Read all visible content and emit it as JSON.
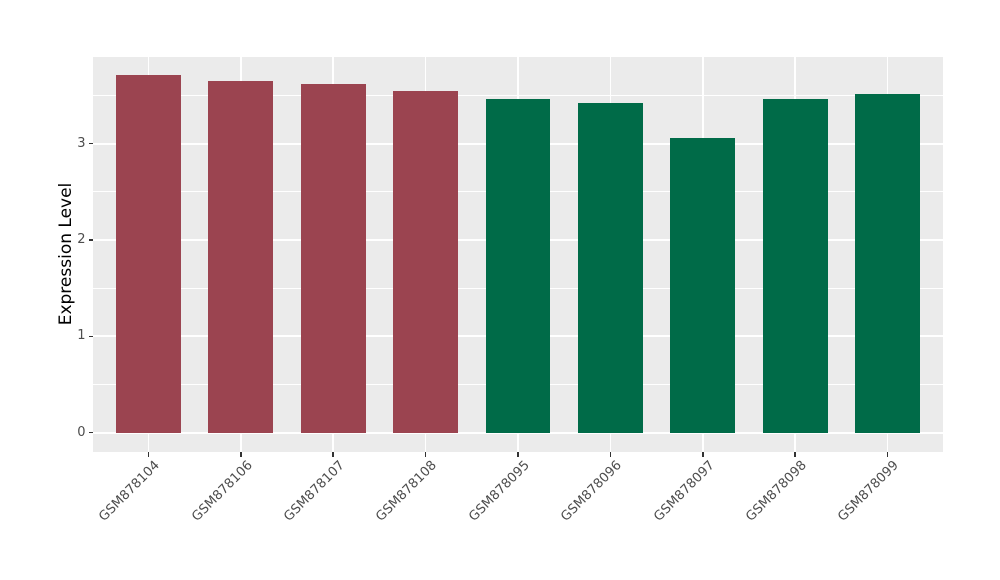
{
  "figure": {
    "background": "#ffffff"
  },
  "chart_data": {
    "type": "bar",
    "title": "",
    "xlabel": "",
    "ylabel": "Expression Level",
    "categories": [
      "GSM878104",
      "GSM878106",
      "GSM878107",
      "GSM878108",
      "GSM878095",
      "GSM878096",
      "GSM878097",
      "GSM878098",
      "GSM878099"
    ],
    "values": [
      3.71,
      3.65,
      3.62,
      3.55,
      3.46,
      3.42,
      3.06,
      3.46,
      3.52
    ],
    "bar_colors": [
      "#9B4450",
      "#9B4450",
      "#9B4450",
      "#9B4450",
      "#006B48",
      "#006B48",
      "#006B48",
      "#006B48",
      "#006B48"
    ],
    "group_colors": {
      "left_group": "#9B4450",
      "right_group": "#006B48"
    },
    "yticks": [
      0,
      1,
      2,
      3
    ],
    "minor_yticks": [
      0.5,
      1.5,
      2.5,
      3.5
    ],
    "ylim": [
      -0.2,
      3.9
    ],
    "grid": true,
    "legend_position": "none",
    "x_label_rotation_deg": 45,
    "panel_background": "#EBEBEB",
    "major_gridline_color": "#FFFFFF",
    "minor_gridline_color": "#FFFFFF",
    "tick_mark_color": "#333333",
    "axis_text_color": "#4d4d4d",
    "axis_title_color": "#000000"
  }
}
